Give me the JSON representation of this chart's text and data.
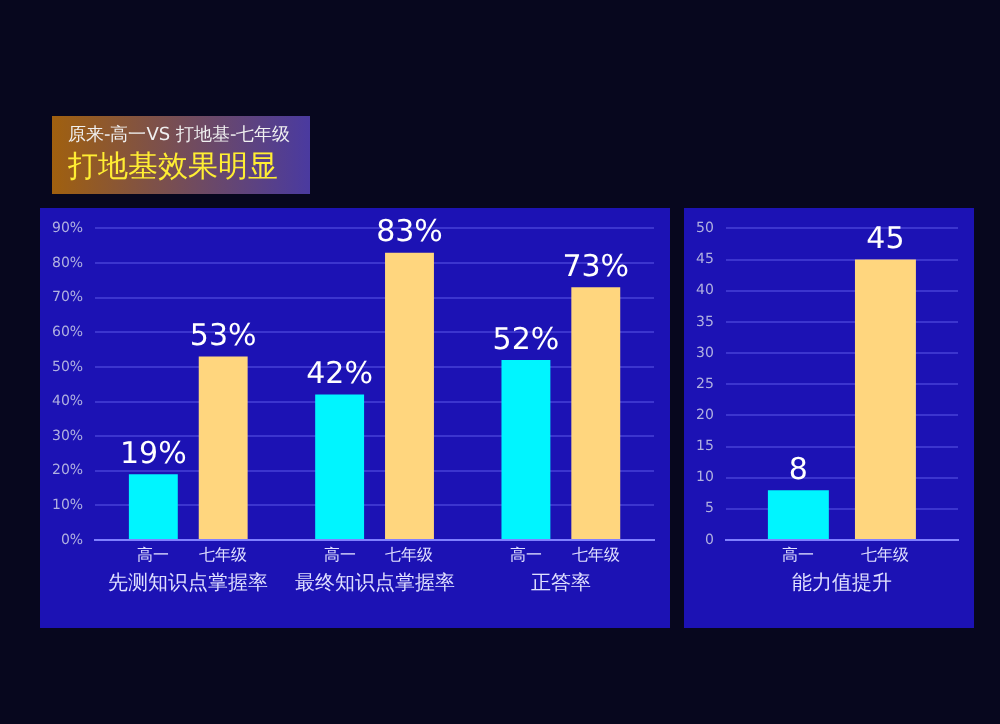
{
  "chart_data": [
    {
      "type": "bar",
      "title": "打地基效果明显",
      "subtitle": "原来-高一VS 打地基-七年级",
      "categories": [
        "先测知识点掌握率",
        "最终知识点掌握率",
        "正答率"
      ],
      "series": [
        {
          "name": "高一",
          "color": "#00f5ff",
          "values": [
            19,
            42,
            52
          ],
          "value_labels": [
            "19%",
            "42%",
            "52%"
          ]
        },
        {
          "name": "七年级",
          "color": "#ffd67e",
          "values": [
            53,
            83,
            73
          ],
          "value_labels": [
            "53%",
            "83%",
            "73%"
          ]
        }
      ],
      "ylim": [
        0,
        90
      ],
      "yticks": [
        {
          "value": 0,
          "label": "0%"
        },
        {
          "value": 10,
          "label": "10%"
        },
        {
          "value": 20,
          "label": "20%"
        },
        {
          "value": 30,
          "label": "30%"
        },
        {
          "value": 40,
          "label": "40%"
        },
        {
          "value": 50,
          "label": "50%"
        },
        {
          "value": 60,
          "label": "60%"
        },
        {
          "value": 70,
          "label": "70%"
        },
        {
          "value": 80,
          "label": "80%"
        },
        {
          "value": 90,
          "label": "90%"
        }
      ],
      "grid": "y",
      "legend": false
    },
    {
      "type": "bar",
      "categories": [
        "能力值提升"
      ],
      "series": [
        {
          "name": "高一",
          "color": "#00f5ff",
          "values": [
            8
          ]
        },
        {
          "name": "七年级",
          "color": "#ffd67e",
          "values": [
            45
          ]
        }
      ],
      "ylim": [
        0,
        50
      ],
      "yticks": [
        0,
        5,
        10,
        15,
        20,
        25,
        30,
        35,
        40,
        45,
        50
      ],
      "grid": "y",
      "legend": false,
      "data_labels": true
    }
  ]
}
